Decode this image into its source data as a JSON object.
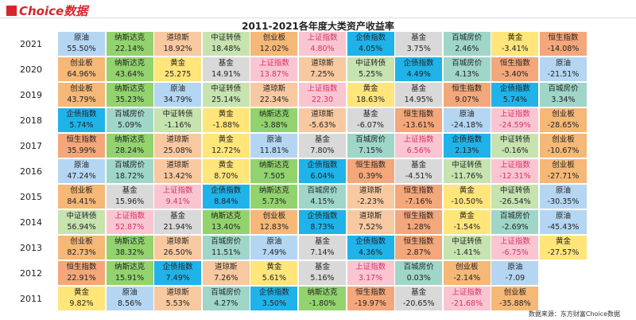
{
  "header": {
    "logo": "Choice数据",
    "title": "2011-2021各年度大类资产收益率"
  },
  "asset_colors": {
    "原油": "#b4d6f2",
    "纳斯达克": "#92d36e",
    "道琼斯": "#f8c9a0",
    "中证转债": "#c6e3b0",
    "创业板": "#f5b877",
    "上证指数": "#f9c5d1",
    "企债指数": "#1fb3ea",
    "基金": "#d9d9d9",
    "百城房价": "#9fd6c8",
    "黄金": "#ffe57a",
    "恒生指数": "#f4a77a"
  },
  "asset_text_colors": {
    "上证指数": "#d6336c"
  },
  "table": {
    "rows": [
      {
        "year": "2021",
        "cells": [
          {
            "name": "原油",
            "value": "55.50%"
          },
          {
            "name": "纳斯达克",
            "value": "22.14%"
          },
          {
            "name": "道琼斯",
            "value": "18.92%"
          },
          {
            "name": "中证转债",
            "value": "18.48%"
          },
          {
            "name": "创业板",
            "value": "12.02%"
          },
          {
            "name": "上证指数",
            "value": "4.80%"
          },
          {
            "name": "企债指数",
            "value": "4.05%"
          },
          {
            "name": "基金",
            "value": "3.75%"
          },
          {
            "name": "百城房价",
            "value": "2.46%"
          },
          {
            "name": "黄金",
            "value": "-3.41%"
          },
          {
            "name": "恒生指数",
            "value": "-14.08%"
          }
        ]
      },
      {
        "year": "2020",
        "cells": [
          {
            "name": "创业板",
            "value": "64.96%"
          },
          {
            "name": "纳斯达克",
            "value": "43.64%"
          },
          {
            "name": "黄金",
            "value": "25.275"
          },
          {
            "name": "基金",
            "value": "14.91%"
          },
          {
            "name": "上证指数",
            "value": "13.87%"
          },
          {
            "name": "道琼斯",
            "value": "7.25%"
          },
          {
            "name": "中证转债",
            "value": "5.25%"
          },
          {
            "name": "企债指数",
            "value": "4.49%"
          },
          {
            "name": "百城房价",
            "value": "4.13%"
          },
          {
            "name": "恒生指数",
            "value": "-3.40%"
          },
          {
            "name": "原油",
            "value": "-21.51%"
          }
        ]
      },
      {
        "year": "2019",
        "cells": [
          {
            "name": "创业板",
            "value": "43.79%"
          },
          {
            "name": "纳斯达克",
            "value": "35.23%"
          },
          {
            "name": "原油",
            "value": "34.79%"
          },
          {
            "name": "中证转债",
            "value": "25.14%"
          },
          {
            "name": "道琼斯",
            "value": "22.34%"
          },
          {
            "name": "上证指数",
            "value": "22.30"
          },
          {
            "name": "黄金",
            "value": "18.63%"
          },
          {
            "name": "基金",
            "value": "14.95%"
          },
          {
            "name": "恒生指数",
            "value": "9.07%"
          },
          {
            "name": "企债指数",
            "value": "5.74%"
          },
          {
            "name": "百城房价",
            "value": "3.34%"
          }
        ]
      },
      {
        "year": "2018",
        "cells": [
          {
            "name": "企债指数",
            "value": "5.74%"
          },
          {
            "name": "百城房价",
            "value": "5.09%"
          },
          {
            "name": "中证转债",
            "value": "-1.16%"
          },
          {
            "name": "黄金",
            "value": "-1.88%"
          },
          {
            "name": "纳斯达克",
            "value": "-3.88%"
          },
          {
            "name": "道琼斯",
            "value": "-5.63%"
          },
          {
            "name": "基金",
            "value": "-6.07%"
          },
          {
            "name": "恒生指数",
            "value": "-13.61%"
          },
          {
            "name": "原油",
            "value": "-24.18%"
          },
          {
            "name": "上证指数",
            "value": "-24.59%"
          },
          {
            "name": "创业板",
            "value": "-28.65%"
          }
        ]
      },
      {
        "year": "2017",
        "cells": [
          {
            "name": "恒生指数",
            "value": "35.99%"
          },
          {
            "name": "纳斯达克",
            "value": "28.24%"
          },
          {
            "name": "道琼斯",
            "value": "25.08%"
          },
          {
            "name": "黄金",
            "value": "12.72%"
          },
          {
            "name": "原油",
            "value": "11.81%"
          },
          {
            "name": "基金",
            "value": "7.80%"
          },
          {
            "name": "百城房价",
            "value": "7.15%"
          },
          {
            "name": "上证指数",
            "value": "6.56%"
          },
          {
            "name": "企债指数",
            "value": "2.13%"
          },
          {
            "name": "中证转债",
            "value": "-0.16%"
          },
          {
            "name": "创业板",
            "value": "-10.67%"
          }
        ]
      },
      {
        "year": "2016",
        "cells": [
          {
            "name": "原油",
            "value": "47.24%"
          },
          {
            "name": "百城房价",
            "value": "18.72%"
          },
          {
            "name": "道琼斯",
            "value": "13.42%"
          },
          {
            "name": "黄金",
            "value": "8.70%"
          },
          {
            "name": "纳斯达克",
            "value": "7.505"
          },
          {
            "name": "企债指数",
            "value": "6.04%"
          },
          {
            "name": "恒生指数",
            "value": "0.39%"
          },
          {
            "name": "基金",
            "value": "-4.51%"
          },
          {
            "name": "中证转债",
            "value": "-11.76%"
          },
          {
            "name": "上证指数",
            "value": "-12.31%"
          },
          {
            "name": "创业板",
            "value": "-27.71%"
          }
        ]
      },
      {
        "year": "2015",
        "cells": [
          {
            "name": "创业板",
            "value": "84.41%"
          },
          {
            "name": "基金",
            "value": "15.96%"
          },
          {
            "name": "上证指数",
            "value": "9.41%"
          },
          {
            "name": "企债指数",
            "value": "8.84%"
          },
          {
            "name": "纳斯达克",
            "value": "5.73%"
          },
          {
            "name": "百城房价",
            "value": "4.15%"
          },
          {
            "name": "道琼斯",
            "value": "-2.23%"
          },
          {
            "name": "恒生指数",
            "value": "-7.16%"
          },
          {
            "name": "黄金",
            "value": "-10.50%"
          },
          {
            "name": "中证转债",
            "value": "-26.54%"
          },
          {
            "name": "原油",
            "value": "-30.35%"
          }
        ]
      },
      {
        "year": "2014",
        "cells": [
          {
            "name": "中证转债",
            "value": "56.94%"
          },
          {
            "name": "上证指数",
            "value": "52.87%"
          },
          {
            "name": "基金",
            "value": "21.94%"
          },
          {
            "name": "纳斯达克",
            "value": "13.40%"
          },
          {
            "name": "创业板",
            "value": "12.83%"
          },
          {
            "name": "企债指数",
            "value": "8.73%"
          },
          {
            "name": "道琼斯",
            "value": "7.52%"
          },
          {
            "name": "恒生指数",
            "value": "1.28%"
          },
          {
            "name": "黄金",
            "value": "-1.54%"
          },
          {
            "name": "百城房价",
            "value": "-2.69%"
          },
          {
            "name": "原油",
            "value": "-45.43%"
          }
        ]
      },
      {
        "year": "2013",
        "cells": [
          {
            "name": "创业板",
            "value": "82.73%"
          },
          {
            "name": "纳斯达克",
            "value": "38.32%"
          },
          {
            "name": "道琼斯",
            "value": "26.50%"
          },
          {
            "name": "百城房价",
            "value": "11.51%"
          },
          {
            "name": "原油",
            "value": "7.49%"
          },
          {
            "name": "基金",
            "value": "7.14%"
          },
          {
            "name": "企债指数",
            "value": "4.36%"
          },
          {
            "name": "恒生指数",
            "value": "2.87%"
          },
          {
            "name": "中证转债",
            "value": "-1.41%"
          },
          {
            "name": "上证指数",
            "value": "-6.75%"
          },
          {
            "name": "黄金",
            "value": "-27.57%"
          }
        ]
      },
      {
        "year": "2012",
        "cells": [
          {
            "name": "恒生指数",
            "value": "22.91%"
          },
          {
            "name": "纳斯达克",
            "value": "15.91%"
          },
          {
            "name": "企债指数",
            "value": "7.49%"
          },
          {
            "name": "道琼斯",
            "value": "7.26%"
          },
          {
            "name": "黄金",
            "value": "5.61%"
          },
          {
            "name": "基金",
            "value": "5.16%"
          },
          {
            "name": "上证指数",
            "value": "3.17%"
          },
          {
            "name": "百城房价",
            "value": "0.03%"
          },
          {
            "name": "创业板",
            "value": "-2.14%"
          },
          {
            "name": "原油",
            "value": "-7.09"
          }
        ]
      },
      {
        "year": "2011",
        "cells": [
          {
            "name": "黄金",
            "value": "9.82%"
          },
          {
            "name": "原油",
            "value": "8.56%"
          },
          {
            "name": "道琼斯",
            "value": "5.53%"
          },
          {
            "name": "百城房价",
            "value": "4.27%"
          },
          {
            "name": "企债指数",
            "value": "3.50%"
          },
          {
            "name": "纳斯达克",
            "value": "-1.80%"
          },
          {
            "name": "恒生指数",
            "value": "-19.97%"
          },
          {
            "name": "基金",
            "value": "-20.65%"
          },
          {
            "name": "上证指数",
            "value": "-21.68%"
          },
          {
            "name": "创业板",
            "value": "-35.88%"
          }
        ]
      }
    ]
  },
  "footer": {
    "source": "数据来源：东方财富Choice数据"
  }
}
